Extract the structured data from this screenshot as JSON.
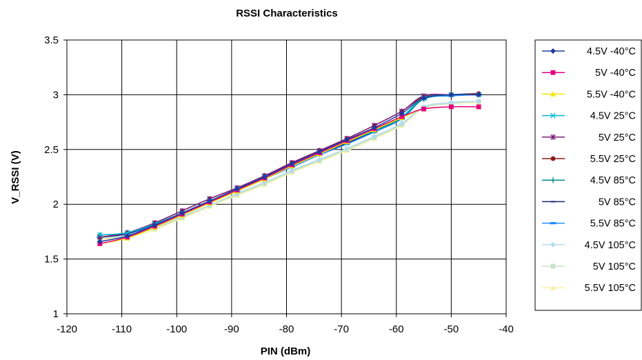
{
  "chart_data": {
    "type": "line",
    "title": "RSSI Characteristics",
    "xlabel": "PIN (dBm)",
    "ylabel": "V_RSSI (V)",
    "xlim": [
      -120,
      -40
    ],
    "ylim": [
      1,
      3.5
    ],
    "x_ticks": [
      "-120",
      "-110",
      "-100",
      "-90",
      "-80",
      "-70",
      "-60",
      "-50",
      "-40"
    ],
    "y_ticks": [
      "1",
      "1.5",
      "2",
      "2.5",
      "3",
      "3.5"
    ],
    "grid": true,
    "legend_position": "right",
    "x": [
      -114,
      -109,
      -104,
      -99,
      -94,
      -89,
      -84,
      -79,
      -74,
      -69,
      -64,
      -59,
      -55,
      -50,
      -45
    ],
    "series": [
      {
        "name": "4.5V -40°C",
        "color": "#1f3a9e",
        "marker": "diamond",
        "values": [
          1.66,
          1.71,
          1.81,
          1.92,
          2.03,
          2.14,
          2.25,
          2.37,
          2.48,
          2.59,
          2.7,
          2.83,
          2.97,
          3.0,
          3.0
        ]
      },
      {
        "name": "5V -40°C",
        "color": "#e6007e",
        "marker": "square",
        "values": [
          1.64,
          1.7,
          1.8,
          1.91,
          2.02,
          2.13,
          2.24,
          2.36,
          2.47,
          2.58,
          2.69,
          2.8,
          2.87,
          2.89,
          2.89
        ]
      },
      {
        "name": "5.5V -40°C",
        "color": "#f5e600",
        "marker": "triangle",
        "values": [
          1.64,
          1.69,
          1.79,
          1.9,
          2.01,
          2.12,
          2.23,
          2.35,
          2.46,
          2.57,
          2.68,
          2.79,
          2.87,
          2.89,
          2.89
        ]
      },
      {
        "name": "4.5V  25°C",
        "color": "#00b8d4",
        "marker": "x",
        "values": [
          1.72,
          1.74,
          1.82,
          1.92,
          2.03,
          2.14,
          2.25,
          2.36,
          2.47,
          2.57,
          2.68,
          2.8,
          2.97,
          3.0,
          3.0
        ]
      },
      {
        "name": "5V  25°C",
        "color": "#7a1f7a",
        "marker": "star",
        "values": [
          1.7,
          1.74,
          1.83,
          1.94,
          2.05,
          2.15,
          2.26,
          2.38,
          2.49,
          2.6,
          2.72,
          2.85,
          2.99,
          3.0,
          3.0
        ]
      },
      {
        "name": "5.5V  25°C",
        "color": "#8b1a1a",
        "marker": "circle",
        "values": [
          1.7,
          1.74,
          1.83,
          1.94,
          2.05,
          2.15,
          2.26,
          2.38,
          2.49,
          2.6,
          2.72,
          2.85,
          2.98,
          3.0,
          3.01
        ]
      },
      {
        "name": "4.5V  85°C",
        "color": "#008a8a",
        "marker": "plus",
        "values": [
          1.72,
          1.74,
          1.82,
          1.92,
          2.03,
          2.13,
          2.24,
          2.35,
          2.46,
          2.57,
          2.67,
          2.79,
          2.96,
          3.0,
          3.0
        ]
      },
      {
        "name": "5V  85°C",
        "color": "#1a237e",
        "marker": "dash",
        "values": [
          1.7,
          1.73,
          1.82,
          1.92,
          2.03,
          2.13,
          2.24,
          2.35,
          2.46,
          2.56,
          2.67,
          2.79,
          2.97,
          3.0,
          3.01
        ]
      },
      {
        "name": "5.5V  85°C",
        "color": "#1e90ff",
        "marker": "bar",
        "values": [
          1.7,
          1.73,
          1.81,
          1.91,
          2.02,
          2.12,
          2.23,
          2.34,
          2.45,
          2.55,
          2.66,
          2.78,
          2.96,
          2.99,
          3.0
        ]
      },
      {
        "name": "4.5V  105°C",
        "color": "#b3dcef",
        "marker": "diamond",
        "values": [
          1.7,
          1.72,
          1.79,
          1.89,
          1.99,
          2.1,
          2.2,
          2.31,
          2.41,
          2.51,
          2.62,
          2.74,
          2.89,
          2.93,
          2.94
        ]
      },
      {
        "name": "5V  105°C",
        "color": "#c6e3c6",
        "marker": "square",
        "values": [
          1.69,
          1.71,
          1.78,
          1.88,
          1.99,
          2.09,
          2.19,
          2.3,
          2.4,
          2.5,
          2.61,
          2.73,
          2.88,
          2.92,
          2.94
        ]
      },
      {
        "name": "5.5V  105°C",
        "color": "#f7f2a6",
        "marker": "triangle",
        "values": [
          1.68,
          1.7,
          1.77,
          1.87,
          1.98,
          2.08,
          2.18,
          2.29,
          2.39,
          2.49,
          2.6,
          2.72,
          2.88,
          2.92,
          2.93
        ]
      }
    ]
  }
}
